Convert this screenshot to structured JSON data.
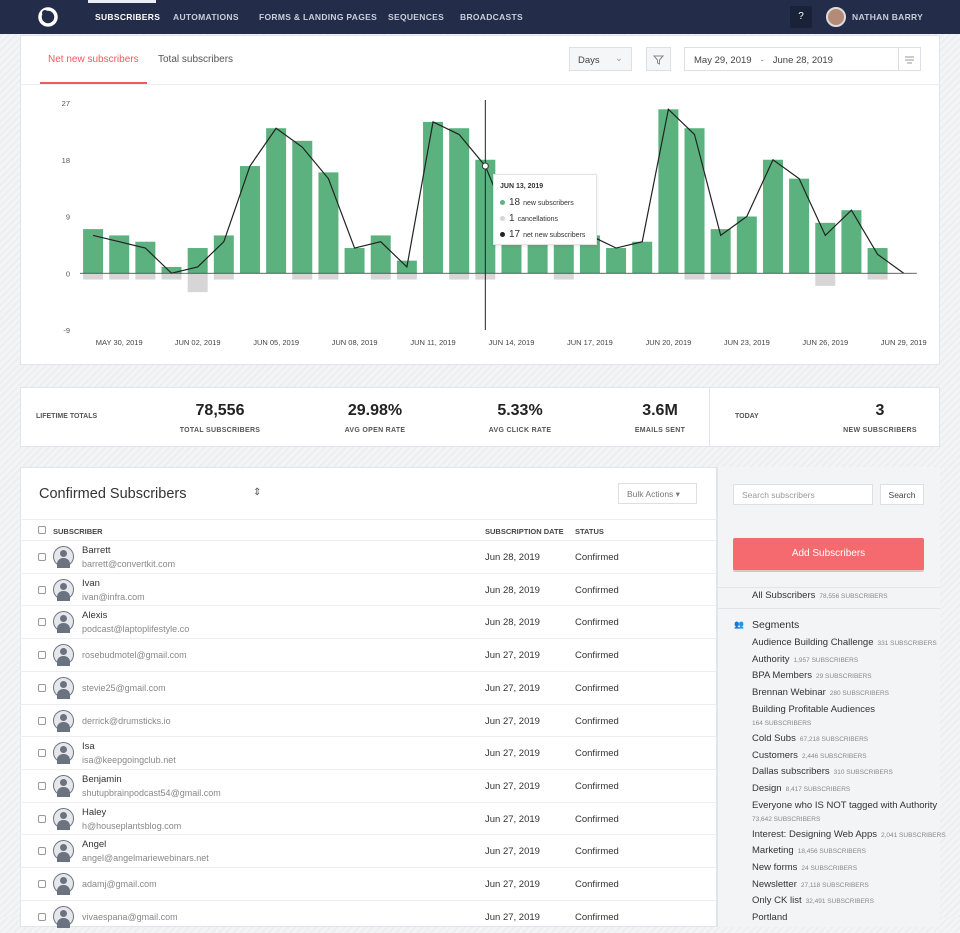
{
  "nav": {
    "items": [
      "SUBSCRIBERS",
      "AUTOMATIONS",
      "FORMS & LANDING PAGES",
      "SEQUENCES",
      "BROADCASTS"
    ],
    "help": "?",
    "user": "NATHAN BARRY"
  },
  "toolbar": {
    "tabs": [
      "Net new subscribers",
      "Total subscribers"
    ],
    "period": "Days",
    "date_start": "May 29, 2019",
    "date_sep": "-",
    "date_end": "June 28, 2019"
  },
  "chart_data": {
    "type": "bar",
    "categories": [
      null,
      "MAY 30, 2019",
      null,
      null,
      "JUN 02, 2019",
      null,
      null,
      "JUN 05, 2019",
      null,
      null,
      "JUN 08, 2019",
      null,
      null,
      "JUN 11, 2019",
      null,
      null,
      "JUN 14, 2019",
      null,
      null,
      "JUN 17, 2019",
      null,
      null,
      "JUN 20, 2019",
      null,
      null,
      "JUN 23, 2019",
      null,
      null,
      "JUN 26, 2019",
      null,
      null,
      "JUN 29, 2019"
    ],
    "series": [
      {
        "name": "new subscribers",
        "color": "#5cb27f",
        "values": [
          7,
          6,
          5,
          1,
          4,
          6,
          17,
          23,
          21,
          16,
          4,
          6,
          2,
          24,
          23,
          18,
          7,
          6,
          6,
          6,
          4,
          5,
          26,
          23,
          7,
          9,
          18,
          15,
          8,
          10,
          4,
          0
        ]
      },
      {
        "name": "cancellations",
        "color": "#d6d6d6",
        "values": [
          -1,
          -1,
          -1,
          -1,
          -3,
          -1,
          0,
          0,
          -1,
          -1,
          0,
          -1,
          -1,
          0,
          -1,
          -1,
          0,
          0,
          -1,
          0,
          0,
          0,
          0,
          -1,
          -1,
          0,
          0,
          0,
          -2,
          0,
          -1,
          0
        ]
      },
      {
        "name": "net new subscribers",
        "color": "#222222",
        "type": "line",
        "values": [
          6,
          5,
          4,
          0,
          1,
          5,
          17,
          23,
          20,
          15,
          4,
          5,
          1,
          24,
          22,
          17,
          7,
          6,
          5,
          6,
          4,
          5,
          26,
          22,
          6,
          9,
          18,
          15,
          6,
          10,
          3,
          0
        ]
      }
    ],
    "ylim": [
      -9,
      27
    ],
    "yticks": [
      -9,
      0,
      9,
      18,
      27
    ],
    "cursor_index": 15,
    "tooltip": {
      "date": "JUN 13, 2019",
      "values": [
        18,
        1,
        17
      ]
    }
  },
  "stats": {
    "label": "LIFETIME TOTALS",
    "items": [
      {
        "value": "78,556",
        "label": "TOTAL SUBSCRIBERS"
      },
      {
        "value": "29.98%",
        "label": "AVG OPEN RATE"
      },
      {
        "value": "5.33%",
        "label": "AVG CLICK RATE"
      },
      {
        "value": "3.6M",
        "label": "EMAILS SENT"
      }
    ],
    "today": {
      "label": "TODAY",
      "value": "3",
      "caption": "NEW SUBSCRIBERS"
    }
  },
  "table": {
    "title": "Confirmed Subscribers",
    "bulk": "Bulk Actions",
    "columns": [
      "SUBSCRIBER",
      "SUBSCRIPTION DATE",
      "STATUS"
    ],
    "rows": [
      {
        "name": "Barrett",
        "email": "barrett@convertkit.com",
        "date": "Jun 28, 2019",
        "status": "Confirmed"
      },
      {
        "name": "Ivan",
        "email": "ivan@infra.com",
        "date": "Jun 28, 2019",
        "status": "Confirmed"
      },
      {
        "name": "Alexis",
        "email": "podcast@laptoplifestyle.co",
        "date": "Jun 28, 2019",
        "status": "Confirmed"
      },
      {
        "email": "rosebudmotel@gmail.com",
        "date": "Jun 27, 2019",
        "status": "Confirmed"
      },
      {
        "email": "stevie25@gmail.com",
        "date": "Jun 27, 2019",
        "status": "Confirmed"
      },
      {
        "email": "derrick@drumsticks.io",
        "date": "Jun 27, 2019",
        "status": "Confirmed"
      },
      {
        "name": "Isa",
        "email": "isa@keepgoingclub.net",
        "date": "Jun 27, 2019",
        "status": "Confirmed"
      },
      {
        "name": "Benjamin",
        "email": "shutupbrainpodcast54@gmail.com",
        "date": "Jun 27, 2019",
        "status": "Confirmed"
      },
      {
        "name": "Haley",
        "email": "h@houseplantsblog.com",
        "date": "Jun 27, 2019",
        "status": "Confirmed"
      },
      {
        "name": "Angel",
        "email": "angel@angelmariewebinars.net",
        "date": "Jun 27, 2019",
        "status": "Confirmed"
      },
      {
        "email": "adamj@gmail.com",
        "date": "Jun 27, 2019",
        "status": "Confirmed"
      },
      {
        "email": "vivaespana@gmail.com",
        "date": "Jun 27, 2019",
        "status": "Confirmed"
      }
    ]
  },
  "sidebar": {
    "search_placeholder": "Search subscribers",
    "search_button": "Search",
    "add_button": "Add Subscribers",
    "all": {
      "name": "All Subscribers",
      "count": "78,556 SUBSCRIBERS"
    },
    "segments_title": "Segments",
    "segments": [
      {
        "name": "Audience Building Challenge",
        "count": "331 SUBSCRIBERS"
      },
      {
        "name": "Authority",
        "count": "1,957 SUBSCRIBERS"
      },
      {
        "name": "BPA Members",
        "count": "29 SUBSCRIBERS"
      },
      {
        "name": "Brennan Webinar",
        "count": "280 SUBSCRIBERS"
      },
      {
        "name": "Building Profitable Audiences",
        "count": "164 SUBSCRIBERS"
      },
      {
        "name": "Cold Subs",
        "count": "67,218 SUBSCRIBERS"
      },
      {
        "name": "Customers",
        "count": "2,446 SUBSCRIBERS"
      },
      {
        "name": "Dallas subscribers",
        "count": "310 SUBSCRIBERS"
      },
      {
        "name": "Design",
        "count": "8,417 SUBSCRIBERS"
      },
      {
        "name": "Everyone who IS NOT tagged with Authority",
        "count": "73,642 SUBSCRIBERS"
      },
      {
        "name": "Interest: Designing Web Apps",
        "count": "2,041 SUBSCRIBERS"
      },
      {
        "name": "Marketing",
        "count": "18,456 SUBSCRIBERS"
      },
      {
        "name": "New forms",
        "count": "24 SUBSCRIBERS"
      },
      {
        "name": "Newsletter",
        "count": "27,118 SUBSCRIBERS"
      },
      {
        "name": "Only CK list",
        "count": "32,491 SUBSCRIBERS"
      },
      {
        "name": "Portland"
      }
    ]
  }
}
